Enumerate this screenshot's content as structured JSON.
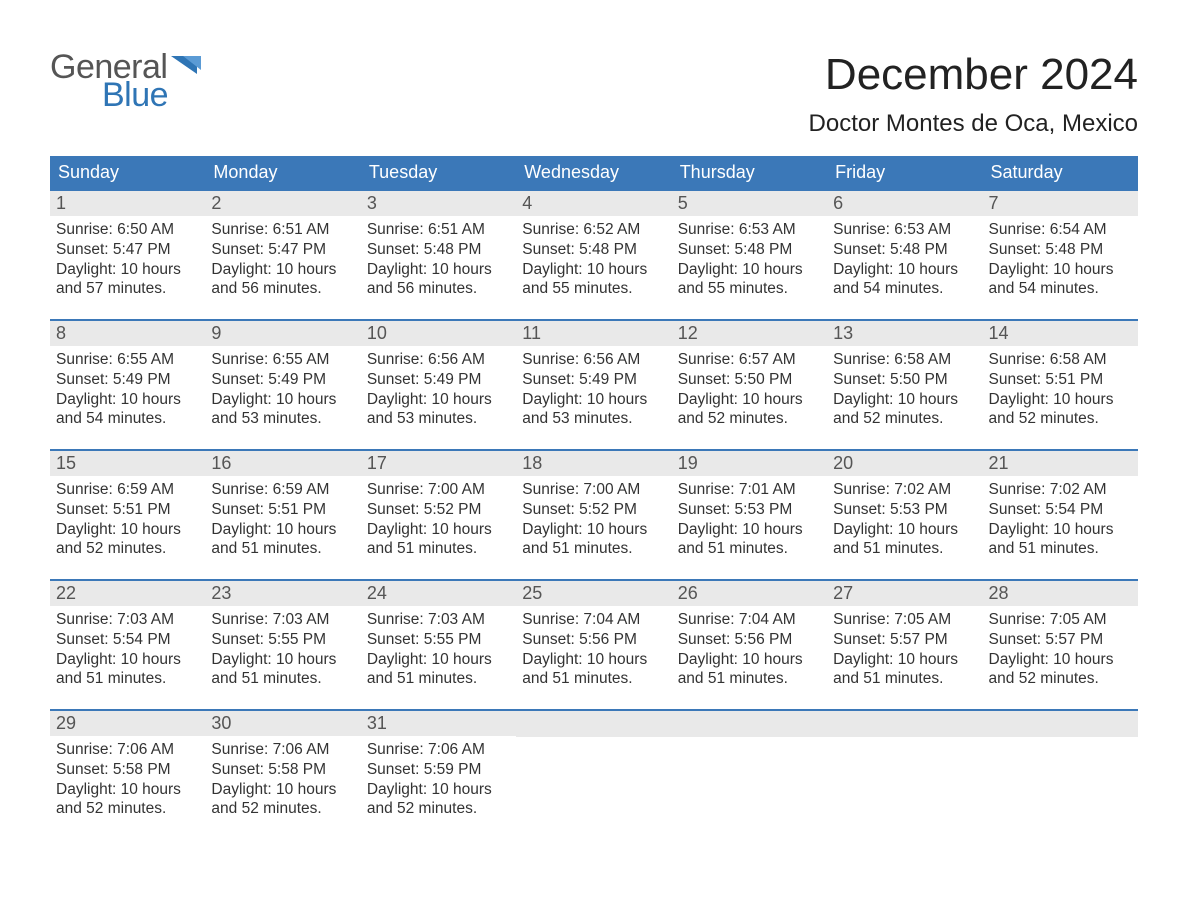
{
  "brand": {
    "word1": "General",
    "word2": "Blue",
    "accent_color": "#2f75b5",
    "text_color": "#555555"
  },
  "title": {
    "month": "December 2024",
    "location": "Doctor Montes de Oca, Mexico",
    "month_fontsize": 44,
    "location_fontsize": 24,
    "color": "#222222"
  },
  "calendar": {
    "header_bg": "#3b78b8",
    "header_text_color": "#ffffff",
    "daynum_bg": "#e9e9e9",
    "row_border_color": "#3b78b8",
    "body_text_color": "#333333",
    "font_family": "Arial",
    "day_headers": [
      "Sunday",
      "Monday",
      "Tuesday",
      "Wednesday",
      "Thursday",
      "Friday",
      "Saturday"
    ],
    "weeks": [
      [
        {
          "n": "1",
          "sunrise": "Sunrise: 6:50 AM",
          "sunset": "Sunset: 5:47 PM",
          "day1": "Daylight: 10 hours",
          "day2": "and 57 minutes."
        },
        {
          "n": "2",
          "sunrise": "Sunrise: 6:51 AM",
          "sunset": "Sunset: 5:47 PM",
          "day1": "Daylight: 10 hours",
          "day2": "and 56 minutes."
        },
        {
          "n": "3",
          "sunrise": "Sunrise: 6:51 AM",
          "sunset": "Sunset: 5:48 PM",
          "day1": "Daylight: 10 hours",
          "day2": "and 56 minutes."
        },
        {
          "n": "4",
          "sunrise": "Sunrise: 6:52 AM",
          "sunset": "Sunset: 5:48 PM",
          "day1": "Daylight: 10 hours",
          "day2": "and 55 minutes."
        },
        {
          "n": "5",
          "sunrise": "Sunrise: 6:53 AM",
          "sunset": "Sunset: 5:48 PM",
          "day1": "Daylight: 10 hours",
          "day2": "and 55 minutes."
        },
        {
          "n": "6",
          "sunrise": "Sunrise: 6:53 AM",
          "sunset": "Sunset: 5:48 PM",
          "day1": "Daylight: 10 hours",
          "day2": "and 54 minutes."
        },
        {
          "n": "7",
          "sunrise": "Sunrise: 6:54 AM",
          "sunset": "Sunset: 5:48 PM",
          "day1": "Daylight: 10 hours",
          "day2": "and 54 minutes."
        }
      ],
      [
        {
          "n": "8",
          "sunrise": "Sunrise: 6:55 AM",
          "sunset": "Sunset: 5:49 PM",
          "day1": "Daylight: 10 hours",
          "day2": "and 54 minutes."
        },
        {
          "n": "9",
          "sunrise": "Sunrise: 6:55 AM",
          "sunset": "Sunset: 5:49 PM",
          "day1": "Daylight: 10 hours",
          "day2": "and 53 minutes."
        },
        {
          "n": "10",
          "sunrise": "Sunrise: 6:56 AM",
          "sunset": "Sunset: 5:49 PM",
          "day1": "Daylight: 10 hours",
          "day2": "and 53 minutes."
        },
        {
          "n": "11",
          "sunrise": "Sunrise: 6:56 AM",
          "sunset": "Sunset: 5:49 PM",
          "day1": "Daylight: 10 hours",
          "day2": "and 53 minutes."
        },
        {
          "n": "12",
          "sunrise": "Sunrise: 6:57 AM",
          "sunset": "Sunset: 5:50 PM",
          "day1": "Daylight: 10 hours",
          "day2": "and 52 minutes."
        },
        {
          "n": "13",
          "sunrise": "Sunrise: 6:58 AM",
          "sunset": "Sunset: 5:50 PM",
          "day1": "Daylight: 10 hours",
          "day2": "and 52 minutes."
        },
        {
          "n": "14",
          "sunrise": "Sunrise: 6:58 AM",
          "sunset": "Sunset: 5:51 PM",
          "day1": "Daylight: 10 hours",
          "day2": "and 52 minutes."
        }
      ],
      [
        {
          "n": "15",
          "sunrise": "Sunrise: 6:59 AM",
          "sunset": "Sunset: 5:51 PM",
          "day1": "Daylight: 10 hours",
          "day2": "and 52 minutes."
        },
        {
          "n": "16",
          "sunrise": "Sunrise: 6:59 AM",
          "sunset": "Sunset: 5:51 PM",
          "day1": "Daylight: 10 hours",
          "day2": "and 51 minutes."
        },
        {
          "n": "17",
          "sunrise": "Sunrise: 7:00 AM",
          "sunset": "Sunset: 5:52 PM",
          "day1": "Daylight: 10 hours",
          "day2": "and 51 minutes."
        },
        {
          "n": "18",
          "sunrise": "Sunrise: 7:00 AM",
          "sunset": "Sunset: 5:52 PM",
          "day1": "Daylight: 10 hours",
          "day2": "and 51 minutes."
        },
        {
          "n": "19",
          "sunrise": "Sunrise: 7:01 AM",
          "sunset": "Sunset: 5:53 PM",
          "day1": "Daylight: 10 hours",
          "day2": "and 51 minutes."
        },
        {
          "n": "20",
          "sunrise": "Sunrise: 7:02 AM",
          "sunset": "Sunset: 5:53 PM",
          "day1": "Daylight: 10 hours",
          "day2": "and 51 minutes."
        },
        {
          "n": "21",
          "sunrise": "Sunrise: 7:02 AM",
          "sunset": "Sunset: 5:54 PM",
          "day1": "Daylight: 10 hours",
          "day2": "and 51 minutes."
        }
      ],
      [
        {
          "n": "22",
          "sunrise": "Sunrise: 7:03 AM",
          "sunset": "Sunset: 5:54 PM",
          "day1": "Daylight: 10 hours",
          "day2": "and 51 minutes."
        },
        {
          "n": "23",
          "sunrise": "Sunrise: 7:03 AM",
          "sunset": "Sunset: 5:55 PM",
          "day1": "Daylight: 10 hours",
          "day2": "and 51 minutes."
        },
        {
          "n": "24",
          "sunrise": "Sunrise: 7:03 AM",
          "sunset": "Sunset: 5:55 PM",
          "day1": "Daylight: 10 hours",
          "day2": "and 51 minutes."
        },
        {
          "n": "25",
          "sunrise": "Sunrise: 7:04 AM",
          "sunset": "Sunset: 5:56 PM",
          "day1": "Daylight: 10 hours",
          "day2": "and 51 minutes."
        },
        {
          "n": "26",
          "sunrise": "Sunrise: 7:04 AM",
          "sunset": "Sunset: 5:56 PM",
          "day1": "Daylight: 10 hours",
          "day2": "and 51 minutes."
        },
        {
          "n": "27",
          "sunrise": "Sunrise: 7:05 AM",
          "sunset": "Sunset: 5:57 PM",
          "day1": "Daylight: 10 hours",
          "day2": "and 51 minutes."
        },
        {
          "n": "28",
          "sunrise": "Sunrise: 7:05 AM",
          "sunset": "Sunset: 5:57 PM",
          "day1": "Daylight: 10 hours",
          "day2": "and 52 minutes."
        }
      ],
      [
        {
          "n": "29",
          "sunrise": "Sunrise: 7:06 AM",
          "sunset": "Sunset: 5:58 PM",
          "day1": "Daylight: 10 hours",
          "day2": "and 52 minutes."
        },
        {
          "n": "30",
          "sunrise": "Sunrise: 7:06 AM",
          "sunset": "Sunset: 5:58 PM",
          "day1": "Daylight: 10 hours",
          "day2": "and 52 minutes."
        },
        {
          "n": "31",
          "sunrise": "Sunrise: 7:06 AM",
          "sunset": "Sunset: 5:59 PM",
          "day1": "Daylight: 10 hours",
          "day2": "and 52 minutes."
        },
        null,
        null,
        null,
        null
      ]
    ]
  }
}
